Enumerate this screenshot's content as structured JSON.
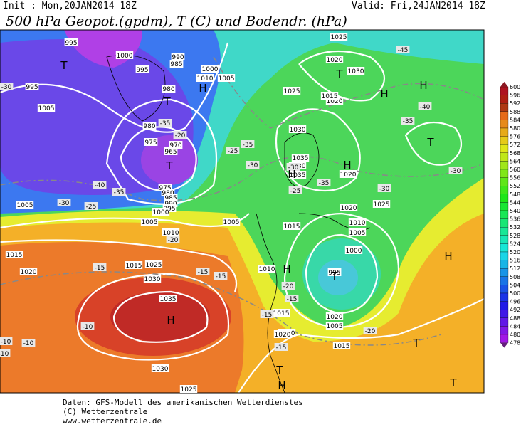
{
  "header": {
    "init": "Init : Mon,20JAN2014 18Z",
    "valid": "Valid: Fri,24JAN2014 18Z",
    "title": "500 hPa Geopot.(gpdm), T (C) und Bodendr. (hPa)"
  },
  "map": {
    "isobar_labels": [
      "995",
      "1000",
      "990",
      "985",
      "995",
      "1000",
      "1010",
      "1005",
      "995",
      "980",
      "1005",
      "980",
      "975",
      "970",
      "965",
      "975",
      "980",
      "985",
      "990",
      "995",
      "1000",
      "1005",
      "1005",
      "1010",
      "1015",
      "1020",
      "1015",
      "1025",
      "1030",
      "1035",
      "1030",
      "1025",
      "1025",
      "1020",
      "1030",
      "1020",
      "1015",
      "1025",
      "1030",
      "1035",
      "1030",
      "1035",
      "1020",
      "1025",
      "1020",
      "1015",
      "1010",
      "1005",
      "1000",
      "995",
      "1005",
      "1010",
      "1015",
      "1010",
      "1020",
      "1015",
      "1020",
      "1005"
    ],
    "temperature_labels": [
      "-30",
      "-35",
      "-40",
      "-35",
      "-30",
      "-25",
      "-20",
      "-25",
      "-35",
      "-30",
      "-35",
      "-30",
      "-25",
      "-45",
      "-40",
      "-35",
      "-30",
      "-20",
      "-15",
      "-10",
      "-15",
      "-10",
      "-15",
      "-20",
      "-15",
      "-20",
      "-15",
      "-10",
      "-10",
      "-15",
      "-30"
    ],
    "pressure_centers": [
      "T",
      "T",
      "H",
      "T",
      "H",
      "H",
      "T",
      "T",
      "H",
      "H",
      "H",
      "H",
      "T",
      "H",
      "T",
      "T",
      "H",
      "T"
    ]
  },
  "colorbar": {
    "labels": [
      600,
      596,
      592,
      588,
      584,
      580,
      576,
      572,
      568,
      564,
      560,
      556,
      552,
      548,
      544,
      540,
      536,
      532,
      528,
      524,
      520,
      516,
      512,
      508,
      504,
      500,
      496,
      492,
      488,
      484,
      480,
      478
    ]
  },
  "footer": {
    "source": "Daten: GFS-Modell des amerikanischen Wetterdienstes",
    "copyright": "(C) Wetterzentrale",
    "url": "www.wetterzentrale.de"
  }
}
